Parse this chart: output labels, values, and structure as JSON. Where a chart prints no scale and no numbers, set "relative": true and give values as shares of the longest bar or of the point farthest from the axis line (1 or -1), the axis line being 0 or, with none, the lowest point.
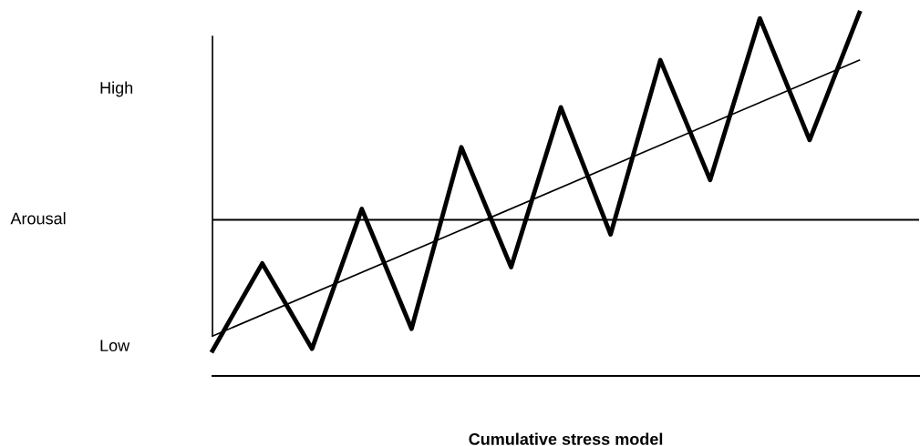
{
  "chart_data": {
    "type": "line",
    "relative": true,
    "xlabel": "Cumulative stress model",
    "annotations": [
      "High",
      "Arousal",
      "Low"
    ],
    "categories": [
      null,
      null,
      null,
      null,
      null,
      null,
      null,
      null,
      null,
      null,
      null,
      null,
      null,
      null
    ],
    "series": [
      {
        "color": "#000000",
        "values": [
          0.07,
          0.31,
          0.075,
          0.46,
          0.13,
          0.63,
          0.3,
          0.74,
          0.39,
          0.87,
          0.54,
          0.985,
          0.65,
          1.0
        ]
      },
      {
        "color": "#000000",
        "line_style": "solid",
        "values": [
          0.11,
          null,
          null,
          null,
          null,
          null,
          null,
          null,
          null,
          null,
          null,
          null,
          null,
          0.87
        ]
      }
    ],
    "ref_lines": [
      {
        "axis": "y",
        "value": 0.43,
        "color": "#000000"
      }
    ],
    "grid": false,
    "legend": false,
    "tick_labels": false,
    "marker": "none"
  }
}
